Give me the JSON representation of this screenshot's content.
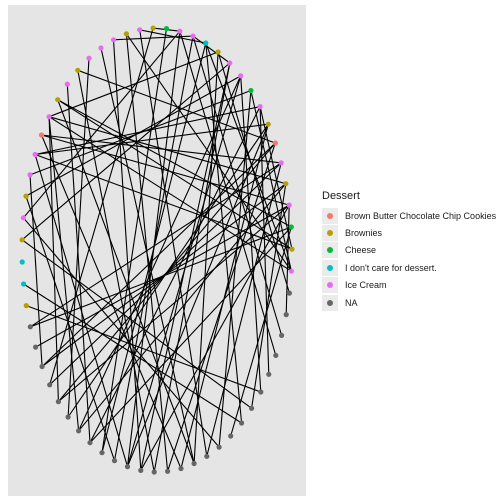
{
  "chart_data": {
    "type": "network",
    "legend": {
      "title": "Dessert",
      "placement": "right",
      "categories": [
        {
          "label": "Brown Butter Chocolate Chip Cookies",
          "color": "#F8766D"
        },
        {
          "label": "Brownies",
          "color": "#B79F00"
        },
        {
          "label": "Cheese",
          "color": "#00BA38"
        },
        {
          "label": "I don't care for dessert.",
          "color": "#00BFC4"
        },
        {
          "label": "Ice Cream",
          "color": "#E76BF3"
        },
        {
          "label": "NA",
          "color": "#666666"
        }
      ]
    },
    "node_categories": [
      "Cheese",
      "Brownies",
      "Ice Cream",
      "Brownies",
      "Ice Cream",
      "Ice Cream",
      "Ice Cream",
      "Brownies",
      "Ice Cream",
      "Brownies",
      "Ice Cream",
      "Brown Butter Chocolate Chip Cookies",
      "Ice Cream",
      "Ice Cream",
      "Brownies",
      "Ice Cream",
      "Brownies",
      "I don't care for dessert.",
      "I don't care for dessert.",
      "Brownies",
      "NA",
      "NA",
      "NA",
      "NA",
      "NA",
      "NA",
      "NA",
      "NA",
      "NA",
      "NA",
      "NA",
      "NA",
      "NA",
      "NA",
      "NA",
      "NA",
      "NA",
      "NA",
      "NA",
      "NA",
      "NA",
      "NA",
      "NA",
      "NA",
      "NA",
      "NA",
      "NA",
      "Ice Cream",
      "Brownies",
      "Cheese",
      "Ice Cream",
      "Brownies",
      "Ice Cream",
      "Brown Butter Chocolate Chip Cookies",
      "Brownies",
      "Ice Cream",
      "Cheese",
      "Ice Cream",
      "Ice Cream",
      "Brownies",
      "I don't care for dessert.",
      "Ice Cream",
      "Ice Cream"
    ],
    "edges": [
      [
        10,
        24
      ],
      [
        10,
        26
      ],
      [
        8,
        27
      ],
      [
        12,
        30
      ],
      [
        7,
        32
      ],
      [
        4,
        31
      ],
      [
        9,
        35
      ],
      [
        13,
        22
      ],
      [
        11,
        34
      ],
      [
        15,
        37
      ],
      [
        14,
        29
      ],
      [
        16,
        40
      ],
      [
        6,
        25
      ],
      [
        18,
        39
      ],
      [
        19,
        41
      ],
      [
        5,
        35
      ],
      [
        3,
        33
      ],
      [
        2,
        36
      ],
      [
        1,
        23
      ],
      [
        0,
        28
      ],
      [
        55,
        12
      ],
      [
        56,
        13
      ],
      [
        57,
        14
      ],
      [
        58,
        16
      ],
      [
        59,
        10
      ],
      [
        52,
        11
      ],
      [
        53,
        7
      ],
      [
        61,
        4
      ],
      [
        62,
        1
      ],
      [
        60,
        2
      ],
      [
        47,
        3
      ],
      [
        48,
        9
      ],
      [
        49,
        27
      ],
      [
        50,
        24
      ],
      [
        51,
        26
      ],
      [
        54,
        30
      ],
      [
        61,
        58
      ],
      [
        62,
        15
      ],
      [
        47,
        10
      ],
      [
        48,
        12
      ],
      [
        49,
        9
      ],
      [
        52,
        20
      ],
      [
        53,
        22
      ],
      [
        50,
        11
      ],
      [
        51,
        10
      ],
      [
        54,
        12
      ],
      [
        55,
        48
      ],
      [
        56,
        47
      ],
      [
        57,
        30
      ],
      [
        58,
        31
      ],
      [
        59,
        46
      ],
      [
        60,
        47
      ],
      [
        45,
        50
      ],
      [
        44,
        61
      ],
      [
        43,
        62
      ],
      [
        42,
        55
      ],
      [
        41,
        57
      ],
      [
        40,
        51
      ],
      [
        39,
        60
      ],
      [
        38,
        49
      ],
      [
        37,
        56
      ],
      [
        36,
        52
      ],
      [
        35,
        59
      ],
      [
        34,
        54
      ],
      [
        33,
        53
      ],
      [
        32,
        58
      ],
      [
        31,
        50
      ],
      [
        30,
        62
      ],
      [
        29,
        61
      ],
      [
        28,
        60
      ],
      [
        27,
        55
      ],
      [
        26,
        57
      ],
      [
        25,
        54
      ],
      [
        24,
        53
      ],
      [
        23,
        52
      ],
      [
        22,
        51
      ],
      [
        21,
        50
      ],
      [
        20,
        49
      ]
    ]
  }
}
